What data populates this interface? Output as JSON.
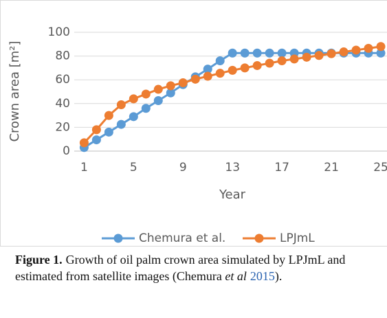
{
  "chart_data": {
    "type": "line",
    "x_label": "Year",
    "y_label": "Crown area [m²]",
    "x": [
      1,
      2,
      3,
      4,
      5,
      6,
      7,
      8,
      9,
      10,
      11,
      12,
      13,
      14,
      15,
      16,
      17,
      18,
      19,
      20,
      21,
      22,
      23,
      24,
      25
    ],
    "series": [
      {
        "name": "Chemura et al.",
        "color": "#5b9bd5",
        "values": [
          3,
          9.5,
          16,
          22.5,
          29,
          36,
          42.5,
          49,
          56,
          62.5,
          69,
          76,
          82.5,
          82.5,
          82.5,
          82.5,
          82.5,
          82.5,
          82.5,
          82.5,
          82.5,
          82.5,
          82.5,
          82.5,
          82.5
        ]
      },
      {
        "name": "LPJmL",
        "color": "#ed7d31",
        "values": [
          7,
          18,
          30,
          39,
          44,
          48,
          52,
          55,
          57.5,
          60.5,
          63,
          65.5,
          68,
          70,
          72,
          74,
          76,
          77.5,
          79,
          80.5,
          82,
          83.5,
          85,
          86.5,
          88
        ]
      }
    ],
    "xlim": [
      0.2,
      25.5
    ],
    "xticks": [
      1,
      5,
      9,
      13,
      17,
      21,
      25
    ],
    "ylim": [
      0,
      100
    ],
    "yticks": [
      0,
      20,
      40,
      60,
      80,
      100
    ],
    "grid": true,
    "legend": "bottom"
  },
  "caption": {
    "label": "Figure 1.",
    "text": "Growth of oil palm crown area simulated by LPJmL and estimated from satellite images (Chemura ",
    "italic": "et al",
    "year": "2015",
    "end": ")."
  }
}
